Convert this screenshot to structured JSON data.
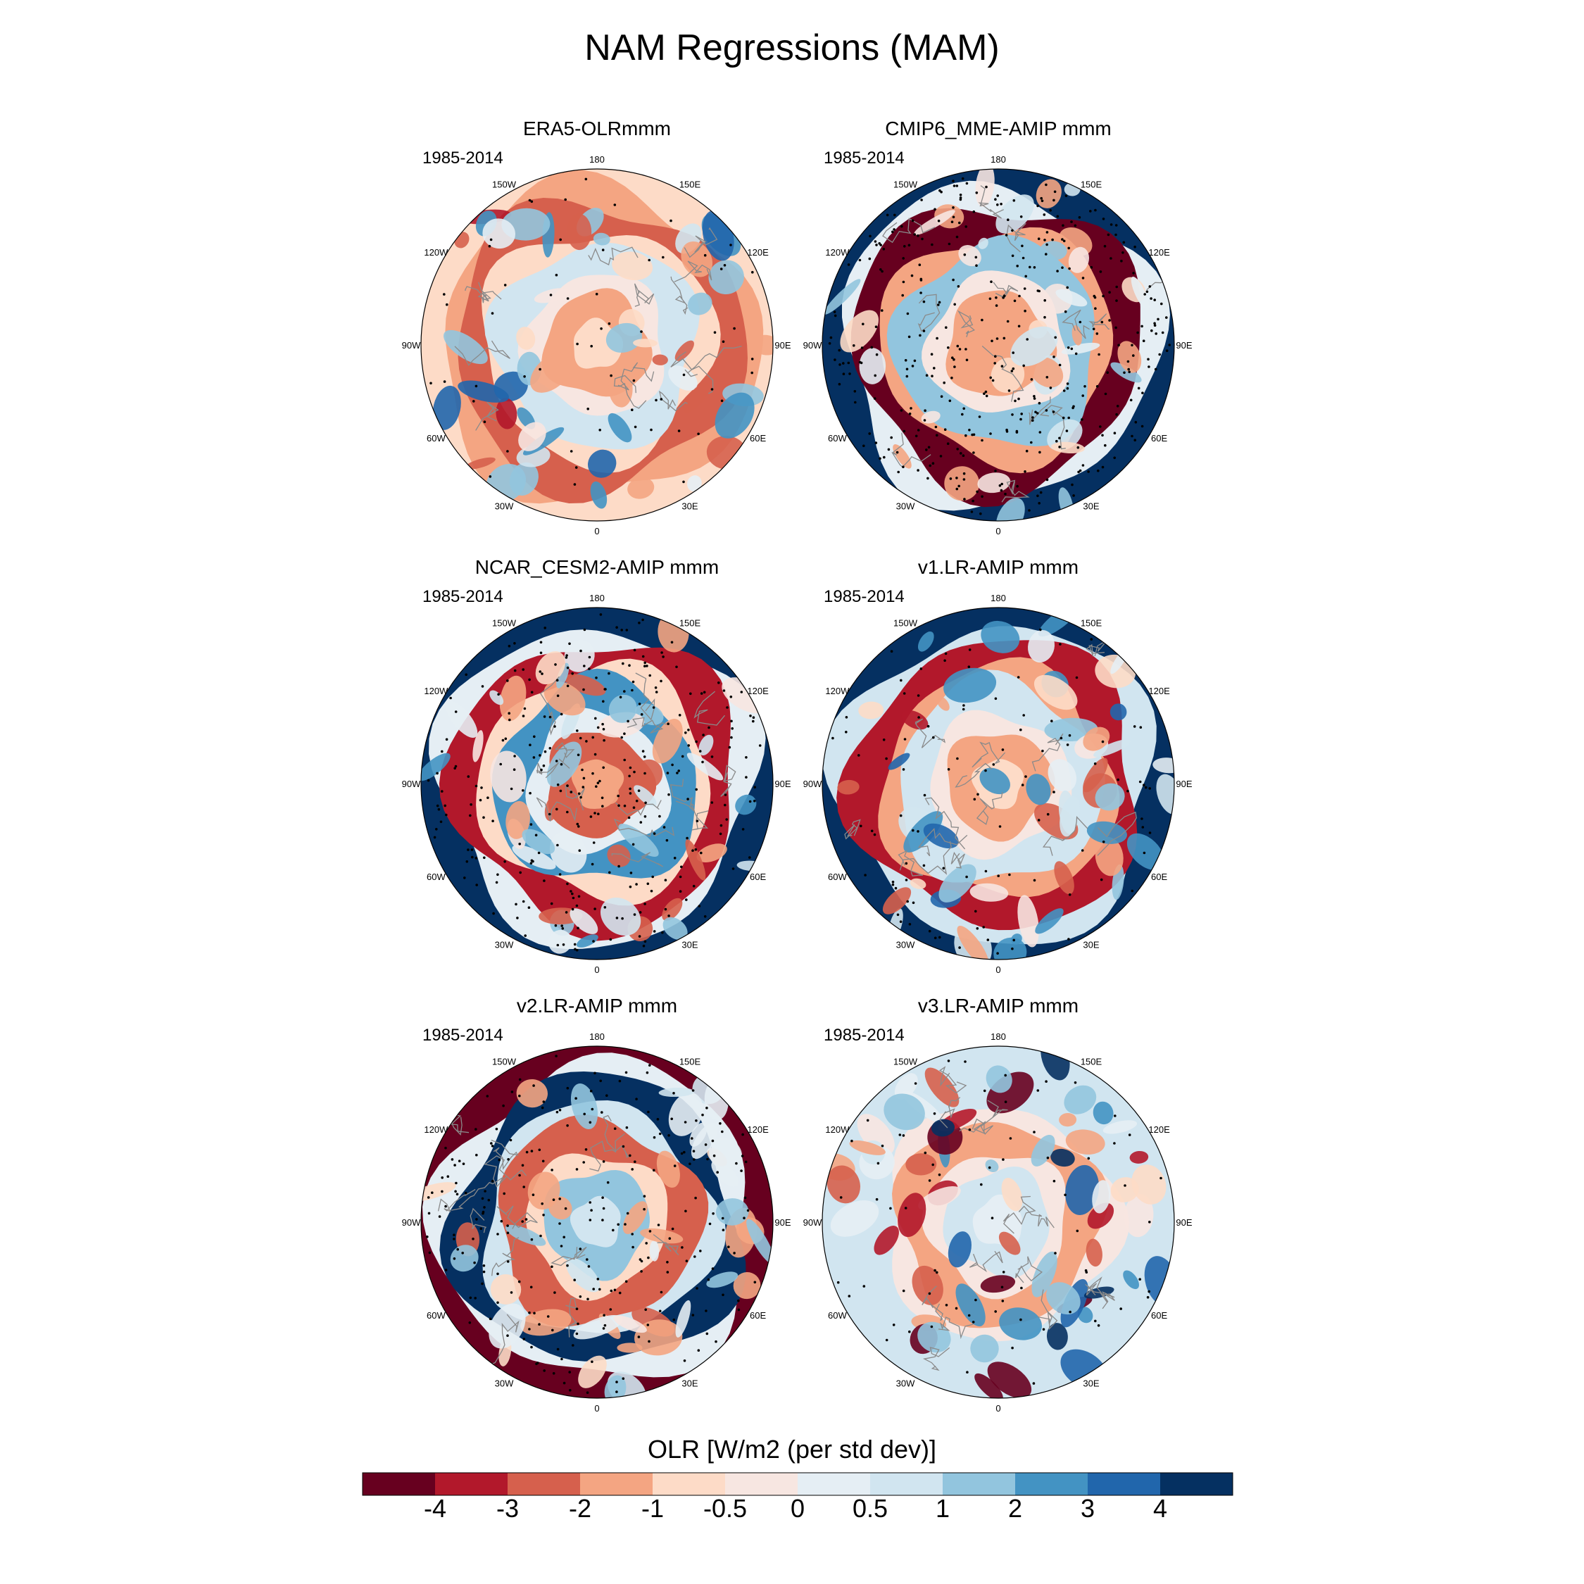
{
  "title": "NAM Regressions (MAM)",
  "colors": {
    "levels": [
      "#67001f",
      "#b2182b",
      "#d6604d",
      "#f4a582",
      "#fddbc7",
      "#f7e6e1",
      "#e5eef4",
      "#d1e5f0",
      "#92c5de",
      "#4393c3",
      "#2166ac",
      "#053061"
    ],
    "land_outline": "#8a8a8a",
    "stipple": "#000000"
  },
  "panels": [
    {
      "title": "ERA5-OLRmmm",
      "period": "1985-2014",
      "pattern": {
        "outer": -0.6,
        "ring": -2.2,
        "mid": 0.9,
        "inner": -1.6,
        "noise": 1.6,
        "stipple": 0.12
      }
    },
    {
      "title": "CMIP6_MME-AMIP  mmm",
      "period": "1985-2014",
      "pattern": {
        "outer": 4.5,
        "ring": -4.5,
        "mid": 1.6,
        "inner": -1.8,
        "noise": 0.6,
        "stipple": 0.75
      }
    },
    {
      "title": "NCAR_CESM2-AMIP  mmm",
      "period": "1985-2014",
      "pattern": {
        "outer": 4.2,
        "ring": -4.0,
        "mid": 2.4,
        "inner": -2.4,
        "noise": 1.2,
        "stipple": 0.6
      }
    },
    {
      "title": "v1.LR-AMIP  mmm",
      "period": "1985-2014",
      "pattern": {
        "outer": 4.3,
        "ring": -3.2,
        "mid": 0.8,
        "inner": -1.4,
        "noise": 1.6,
        "stipple": 0.2
      }
    },
    {
      "title": "v2.LR-AMIP  mmm",
      "period": "1985-2014",
      "pattern": {
        "outer": -4.5,
        "ring": 4.5,
        "mid": -2.6,
        "inner": 1.2,
        "noise": 1.0,
        "stipple": 0.5
      }
    },
    {
      "title": "v3.LR-AMIP  mmm",
      "period": "1985-2014",
      "pattern": {
        "outer": 0.8,
        "ring": 0.6,
        "mid": -1.2,
        "inner": 0.8,
        "noise": 2.4,
        "stipple": 0.15
      }
    }
  ],
  "longitude_labels": [
    "180",
    "150E",
    "120E",
    "90E",
    "60E",
    "30E",
    "0",
    "30W",
    "60W",
    "90W",
    "120W",
    "150W"
  ],
  "colorbar": {
    "title": "OLR [W/m2 (per std dev)]",
    "tick_labels": [
      "-4",
      "-3",
      "-2",
      "-1",
      "-0.5",
      "0",
      "0.5",
      "1",
      "2",
      "3",
      "4"
    ]
  }
}
